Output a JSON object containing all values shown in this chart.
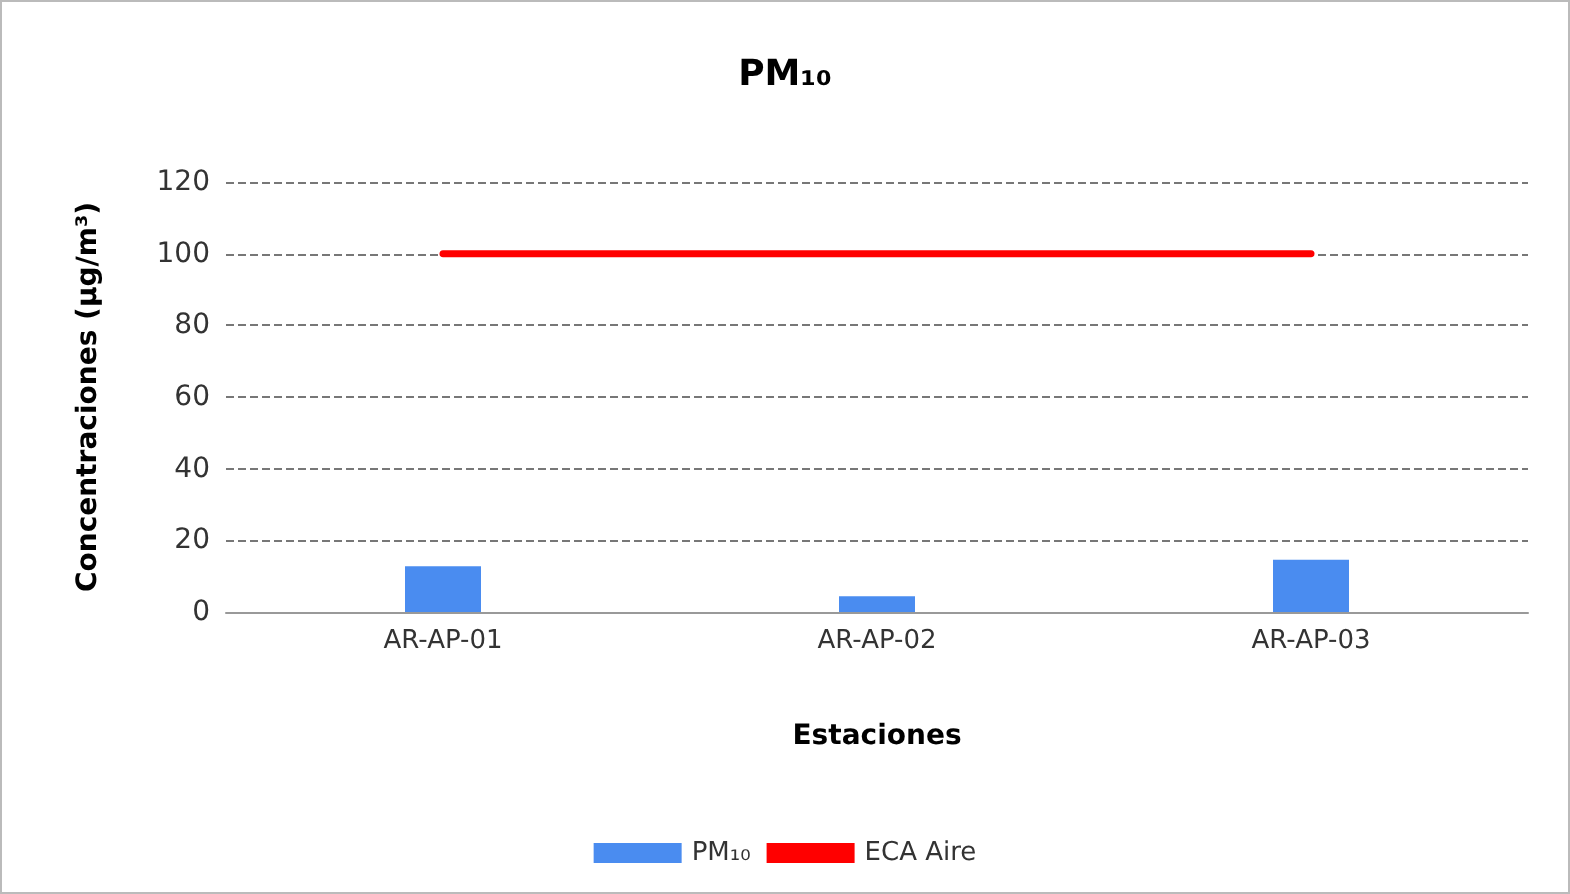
{
  "chart_data": {
    "type": "bar",
    "title": "PM₁₀",
    "xlabel": "Estaciones",
    "ylabel": "Concentraciones (µg/m³)",
    "categories": [
      "AR-AP-01",
      "AR-AP-02",
      "AR-AP-03"
    ],
    "series": [
      {
        "name": "PM₁₀",
        "color": "#4a8cf0",
        "values": [
          12.8,
          4.4,
          14.6
        ]
      },
      {
        "name": "ECA Aire",
        "type": "line",
        "color": "#ff0000",
        "values": [
          100,
          100,
          100
        ],
        "marker": "none"
      }
    ],
    "ylim": [
      0,
      120
    ],
    "yticks": [
      0,
      20,
      40,
      60,
      80,
      100,
      120
    ],
    "grid": "y",
    "legend": "bottom"
  }
}
